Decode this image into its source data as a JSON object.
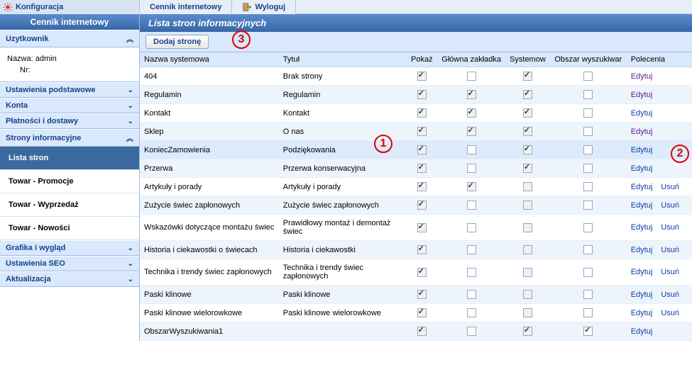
{
  "top": {
    "konfiguracja": "Konfiguracja",
    "cennik_tab": "Cennik internetowy",
    "wyloguj": "Wyloguj"
  },
  "sidebar": {
    "title": "Cennik internetowy",
    "user_panel": "Uzytkownik",
    "user_name_label": "Nazwa:",
    "user_name": "admin",
    "user_nr_label": "Nr:",
    "user_nr": "",
    "panels": [
      {
        "label": "Ustawienia podstawowe",
        "chev": "¥"
      },
      {
        "label": "Konta",
        "chev": "¥"
      },
      {
        "label": "Płatności i dostawy",
        "chev": "¥"
      }
    ],
    "strony_panel": "Strony informacyjne",
    "strony_chev": "︽",
    "subs": [
      {
        "label": "Lista stron",
        "active": true
      },
      {
        "label": "Towar - Promocje"
      },
      {
        "label": "Towar - Wyprzedaż"
      },
      {
        "label": "Towar - Nowości"
      }
    ],
    "panels2": [
      {
        "label": "Grafika i wygląd",
        "chev": "¥"
      },
      {
        "label": "Ustawienia SEO",
        "chev": "¥"
      },
      {
        "label": "Aktualizacja",
        "chev": "¥"
      }
    ]
  },
  "main": {
    "title": "Lista stron informacyjnych",
    "add_btn": "Dodaj stronę",
    "cols": {
      "nazwa": "Nazwa systemowa",
      "tytul": "Tytuł",
      "pokaz": "Pokaż",
      "glowna": "Główna zakładka",
      "systemow": "Systemow",
      "obszar": "Obszar wyszukiwar",
      "polecenia": "Polecenia"
    },
    "edit": "Edytuj",
    "usun": "Usuń",
    "rows": [
      {
        "n": "404",
        "t": "Brak strony",
        "p": true,
        "g": false,
        "s": true,
        "o": false,
        "edit": "pur",
        "del": false,
        "alt": false
      },
      {
        "n": "Regulamin",
        "t": "Regulamin",
        "p": true,
        "g": true,
        "s": true,
        "o": false,
        "edit": "pur",
        "del": false,
        "alt": true
      },
      {
        "n": "Kontakt",
        "t": "Kontakt",
        "p": true,
        "g": true,
        "s": true,
        "o": false,
        "edit": "blue",
        "del": false,
        "alt": false
      },
      {
        "n": "Sklep",
        "t": "O nas",
        "p": true,
        "g": true,
        "s": true,
        "o": false,
        "edit": "pur",
        "del": false,
        "alt": true
      },
      {
        "n": "KoniecZamowienia",
        "t": "Podziękowania",
        "p": true,
        "g": false,
        "s": true,
        "o": false,
        "edit": "blue",
        "del": false,
        "alt": false,
        "sel": true
      },
      {
        "n": "Przerwa",
        "t": "Przerwa konserwacyjna",
        "p": true,
        "g": false,
        "s": true,
        "o": false,
        "edit": "blue",
        "del": false,
        "alt": true
      },
      {
        "n": "Artykuły i porady",
        "t": "Artykuły i porady",
        "p": true,
        "g": true,
        "s": false,
        "o": false,
        "edit": "blue",
        "del": true,
        "alt": false
      },
      {
        "n": "Zużycie świec zapłonowych",
        "t": "Zużycie świec zapłonowych",
        "p": true,
        "g": false,
        "s": false,
        "o": false,
        "edit": "blue",
        "del": true,
        "alt": true
      },
      {
        "n": "Wskazówki dotyczące montażu świec",
        "t": "Prawidłowy montaż i demontaż świec",
        "p": true,
        "g": false,
        "s": false,
        "o": false,
        "edit": "blue",
        "del": true,
        "alt": false
      },
      {
        "n": "Historia i ciekawostki o świecach",
        "t": "Historia i ciekawostki",
        "p": true,
        "g": false,
        "s": false,
        "o": false,
        "edit": "blue",
        "del": true,
        "alt": true
      },
      {
        "n": "Technika i trendy świec zapłonowych",
        "t": "Technika i trendy świec zapłonowych",
        "p": true,
        "g": false,
        "s": false,
        "o": false,
        "edit": "blue",
        "del": true,
        "alt": false
      },
      {
        "n": "Paski klinowe",
        "t": "Paski klinowe",
        "p": true,
        "g": false,
        "s": false,
        "o": false,
        "edit": "blue",
        "del": true,
        "alt": true
      },
      {
        "n": "Paski klinowe wielorowkowe",
        "t": "Paski klinowe wielorowkowe",
        "p": true,
        "g": false,
        "s": false,
        "o": false,
        "edit": "blue",
        "del": true,
        "alt": false
      },
      {
        "n": "ObszarWyszukiwania1",
        "t": "",
        "p": true,
        "g": false,
        "s": true,
        "o": true,
        "edit": "blue",
        "del": false,
        "alt": true
      }
    ]
  },
  "annotations": {
    "a1": "1",
    "a2": "2",
    "a3": "3"
  }
}
